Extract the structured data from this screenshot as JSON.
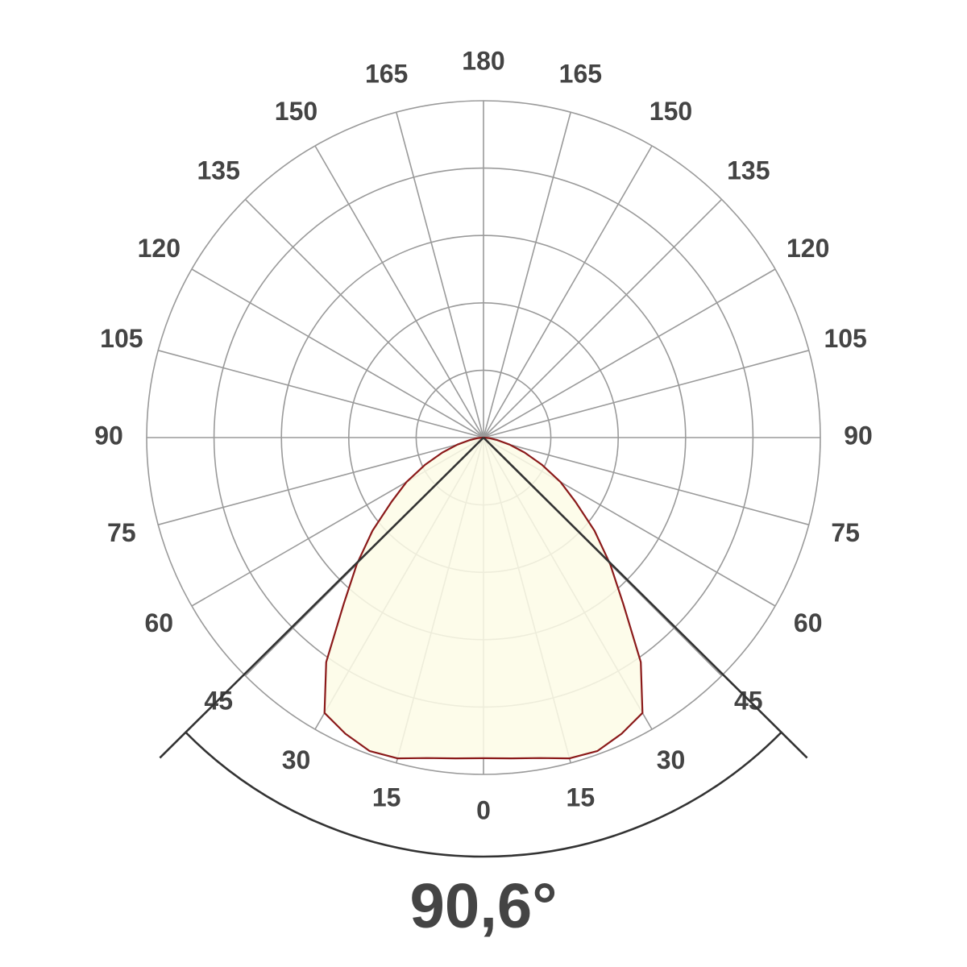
{
  "chart_data": {
    "type": "polar",
    "angles": [
      0,
      5,
      10,
      15,
      20,
      25,
      30,
      35,
      40,
      45,
      50,
      55,
      60,
      65,
      70,
      75,
      80,
      85,
      90
    ],
    "values": [
      4.76,
      4.78,
      4.83,
      4.93,
      4.95,
      4.85,
      4.72,
      4.07,
      3.23,
      2.66,
      2.15,
      1.67,
      1.32,
      0.96,
      0.65,
      0.4,
      0.2,
      0.08,
      0
    ],
    "color": "#8b1a1a",
    "fill": "#fdfbe6",
    "rlim": [
      0,
      5
    ],
    "rticks": [
      1,
      2,
      3,
      4,
      5
    ],
    "angle_ticks": [
      0,
      15,
      30,
      45,
      60,
      75,
      90,
      105,
      120,
      135,
      150,
      165,
      180
    ],
    "beam_angle": {
      "value": 90.6,
      "label": "90,6°"
    }
  }
}
